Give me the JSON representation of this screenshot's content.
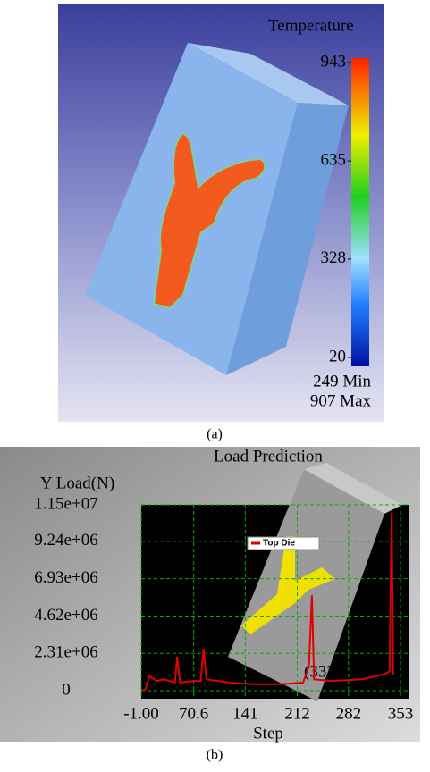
{
  "chart_data": [
    {
      "type": "contour",
      "title": "Temperature",
      "clim": [
        20,
        943
      ],
      "cticks": [
        20,
        328,
        635,
        943
      ],
      "annotations": [
        "249 Min",
        "907 Max"
      ],
      "caption": "(a)"
    },
    {
      "type": "line",
      "title": "Load Prediction",
      "y_label": "Y Load(N)",
      "x_label": "Step",
      "xlim": [
        -1,
        353
      ],
      "xticks": [
        {
          "value": -1,
          "label": "-1.00"
        },
        70.6,
        141,
        212,
        282,
        353
      ],
      "ylim": [
        0,
        11500000
      ],
      "yticks": [
        0,
        {
          "value": 2310000,
          "label": "2.31e+06"
        },
        {
          "value": 4620000,
          "label": "4.62e+06"
        },
        {
          "value": 6930000,
          "label": "6.93e+06"
        },
        {
          "value": 9240000,
          "label": "9.24e+06"
        },
        {
          "value": 11500000,
          "label": "1.15e+07"
        }
      ],
      "grid": true,
      "grid_color": "#00b000",
      "series": [
        {
          "name": "Top Die",
          "color": "#e00000",
          "x": [
            0,
            5,
            10,
            20,
            30,
            45,
            48,
            52,
            70,
            80,
            84,
            88,
            120,
            150,
            190,
            220,
            228,
            232,
            235,
            260,
            300,
            332,
            338,
            341,
            343
          ],
          "values": [
            0,
            100000,
            900000,
            600000,
            700000,
            500000,
            2100000,
            500000,
            600000,
            600000,
            2600000,
            700000,
            500000,
            400000,
            400000,
            500000,
            1500000,
            5900000,
            700000,
            600000,
            700000,
            1030000,
            1200000,
            11000000,
            1000000
          ]
        }
      ],
      "annotations": [
        "(332,1.03e+06)"
      ],
      "caption": "(b)"
    }
  ]
}
